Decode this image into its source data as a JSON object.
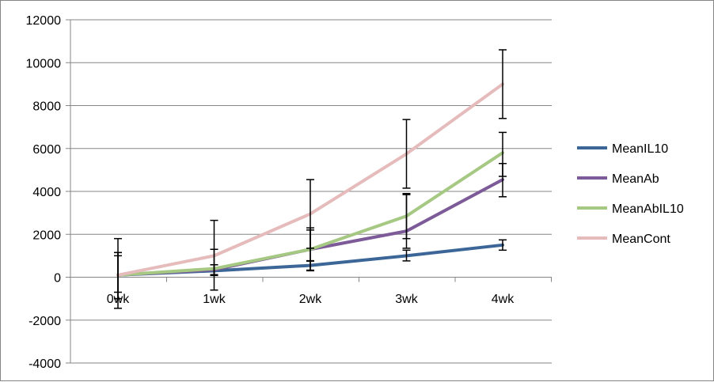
{
  "chart_data": {
    "type": "line",
    "categories": [
      "0wk",
      "1wk",
      "2wk",
      "3wk",
      "4wk"
    ],
    "ylim": [
      -4000,
      12000
    ],
    "yticks": [
      -4000,
      -2000,
      0,
      2000,
      4000,
      6000,
      8000,
      10000,
      12000
    ],
    "grid": true,
    "legend_position": "right",
    "series": [
      {
        "name": "MeanIL10",
        "color": "#3C6697",
        "values": [
          100,
          300,
          550,
          1000,
          1500
        ],
        "errors": [
          [
            -700,
            1000
          ],
          [
            80,
            580
          ],
          [
            330,
            770
          ],
          [
            760,
            1260
          ],
          [
            1260,
            1740
          ]
        ]
      },
      {
        "name": "MeanAb",
        "color": "#7D5B98",
        "values": [
          100,
          350,
          1300,
          2150,
          4550
        ],
        "errors": [
          [
            -1000,
            1150
          ],
          [
            120,
            580
          ],
          [
            750,
            2200
          ],
          [
            1350,
            3850
          ],
          [
            3750,
            5300
          ]
        ]
      },
      {
        "name": "MeanAbIL10",
        "color": "#A5C882",
        "values": [
          100,
          400,
          1300,
          2850,
          5800
        ],
        "errors": [
          [
            -1000,
            1150
          ],
          [
            100,
            1300
          ],
          [
            300,
            2300
          ],
          [
            1800,
            3900
          ],
          [
            4700,
            6750
          ]
        ]
      },
      {
        "name": "MeanCont",
        "color": "#E5BBBB",
        "values": [
          100,
          1000,
          2950,
          5750,
          9000
        ],
        "errors": [
          [
            -1450,
            1800
          ],
          [
            -600,
            2650
          ],
          [
            1350,
            4550
          ],
          [
            4150,
            7350
          ],
          [
            7400,
            10600
          ]
        ]
      }
    ]
  }
}
